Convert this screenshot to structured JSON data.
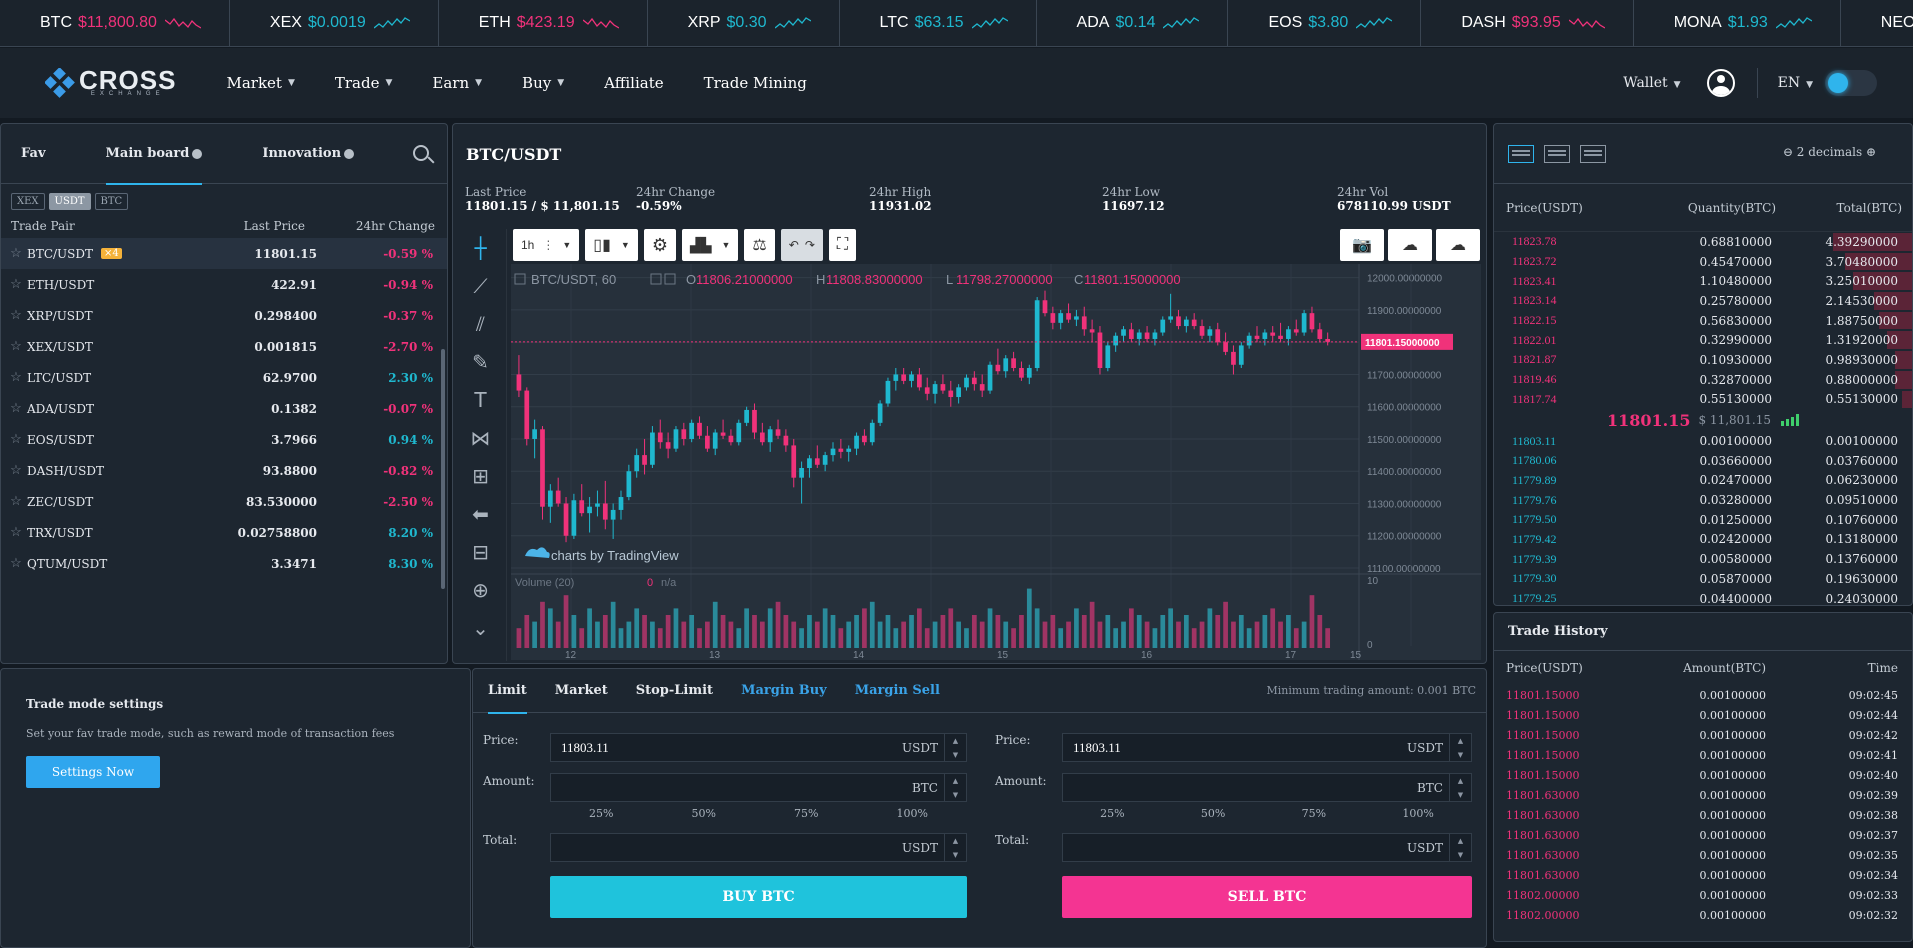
{
  "ticker": [
    {
      "sym": "BTC",
      "price": "$11,800.80",
      "dir": "down"
    },
    {
      "sym": "XEX",
      "price": "$0.0019",
      "dir": "up"
    },
    {
      "sym": "ETH",
      "price": "$423.19",
      "dir": "down"
    },
    {
      "sym": "XRP",
      "price": "$0.30",
      "dir": "up"
    },
    {
      "sym": "LTC",
      "price": "$63.15",
      "dir": "up"
    },
    {
      "sym": "ADA",
      "price": "$0.14",
      "dir": "up"
    },
    {
      "sym": "EOS",
      "price": "$3.80",
      "dir": "up"
    },
    {
      "sym": "DASH",
      "price": "$93.95",
      "dir": "down"
    },
    {
      "sym": "MONA",
      "price": "$1.93",
      "dir": "up"
    },
    {
      "sym": "NEO",
      "price": "",
      "dir": "up"
    }
  ],
  "logo": {
    "word": "CROSS",
    "sub": "EXCHANGE"
  },
  "nav": {
    "items": [
      {
        "label": "Market",
        "caret": true
      },
      {
        "label": "Trade",
        "caret": true
      },
      {
        "label": "Earn",
        "caret": true
      },
      {
        "label": "Buy",
        "caret": true
      },
      {
        "label": "Affiliate",
        "caret": false
      },
      {
        "label": "Trade Mining",
        "caret": false
      }
    ],
    "wallet": "Wallet",
    "lang": "EN"
  },
  "market": {
    "tabs": [
      "Fav",
      "Main board",
      "Innovation"
    ],
    "chips": [
      "XEX",
      "USDT",
      "BTC"
    ],
    "headers": [
      "Trade Pair",
      "Last Price",
      "24hr Change"
    ],
    "rows": [
      {
        "pair": "BTC/USDT",
        "badge": "×4",
        "price": "11801.15",
        "change": "-0.59 %",
        "dir": "down"
      },
      {
        "pair": "ETH/USDT",
        "badge": "",
        "price": "422.91",
        "change": "-0.94 %",
        "dir": "down"
      },
      {
        "pair": "XRP/USDT",
        "badge": "",
        "price": "0.298400",
        "change": "-0.37 %",
        "dir": "down"
      },
      {
        "pair": "XEX/USDT",
        "badge": "",
        "price": "0.001815",
        "change": "-2.70 %",
        "dir": "down"
      },
      {
        "pair": "LTC/USDT",
        "badge": "",
        "price": "62.9700",
        "change": "2.30 %",
        "dir": "up"
      },
      {
        "pair": "ADA/USDT",
        "badge": "",
        "price": "0.1382",
        "change": "-0.07 %",
        "dir": "down"
      },
      {
        "pair": "EOS/USDT",
        "badge": "",
        "price": "3.7966",
        "change": "0.94 %",
        "dir": "up"
      },
      {
        "pair": "DASH/USDT",
        "badge": "",
        "price": "93.8800",
        "change": "-0.82 %",
        "dir": "down"
      },
      {
        "pair": "ZEC/USDT",
        "badge": "",
        "price": "83.530000",
        "change": "-2.50 %",
        "dir": "down"
      },
      {
        "pair": "TRX/USDT",
        "badge": "",
        "price": "0.02758800",
        "change": "8.20 %",
        "dir": "up"
      },
      {
        "pair": "QTUM/USDT",
        "badge": "",
        "price": "3.3471",
        "change": "8.30 %",
        "dir": "up"
      }
    ]
  },
  "chart": {
    "title": "BTC/USDT",
    "stats": [
      {
        "k": "Last Price",
        "v": "11801.15 / $ 11,801.15"
      },
      {
        "k": "24hr Change",
        "v": "-0.59%"
      },
      {
        "k": "24hr High",
        "v": "11931.02"
      },
      {
        "k": "24hr Low",
        "v": "11697.12"
      },
      {
        "k": "24hr Vol",
        "v": "678110.99 USDT"
      }
    ],
    "interval": "1h",
    "legend": "BTC/USDT, 60",
    "o": "11806.21000000",
    "h": "11808.83000000",
    "l": "11798.27000000",
    "c": "11801.15000000",
    "last_label": "11801.15000000",
    "y_ticks": [
      "12000.00000000",
      "11900.00000000",
      "11800.00000000",
      "11700.00000000",
      "11600.00000000",
      "11500.00000000",
      "11400.00000000",
      "11300.00000000",
      "11200.00000000",
      "11100.00000000"
    ],
    "x_ticks": [
      "12",
      "13",
      "14",
      "15",
      "16",
      "17",
      "15"
    ],
    "volume_label": "Volume (20)",
    "volume_val": "0",
    "volume_na": "n/a",
    "vol_ticks": [
      "10",
      "0"
    ],
    "watermark": "charts by TradingView"
  },
  "chart_data": {
    "type": "candlestick",
    "title": "BTC/USDT, 60",
    "ylim": [
      11100,
      12030
    ],
    "candles": [
      [
        11700,
        11760,
        11630,
        11650
      ],
      [
        11650,
        11660,
        11480,
        11500
      ],
      [
        11500,
        11560,
        11440,
        11530
      ],
      [
        11530,
        11540,
        11250,
        11290
      ],
      [
        11290,
        11360,
        11240,
        11340
      ],
      [
        11340,
        11380,
        11290,
        11300
      ],
      [
        11300,
        11320,
        11180,
        11200
      ],
      [
        11200,
        11330,
        11190,
        11310
      ],
      [
        11310,
        11360,
        11260,
        11270
      ],
      [
        11270,
        11320,
        11210,
        11290
      ],
      [
        11290,
        11340,
        11260,
        11300
      ],
      [
        11300,
        11370,
        11220,
        11250
      ],
      [
        11250,
        11300,
        11190,
        11280
      ],
      [
        11280,
        11340,
        11250,
        11320
      ],
      [
        11320,
        11420,
        11310,
        11400
      ],
      [
        11400,
        11470,
        11380,
        11450
      ],
      [
        11450,
        11500,
        11390,
        11420
      ],
      [
        11420,
        11540,
        11410,
        11520
      ],
      [
        11520,
        11560,
        11470,
        11490
      ],
      [
        11490,
        11520,
        11440,
        11470
      ],
      [
        11470,
        11540,
        11460,
        11530
      ],
      [
        11530,
        11550,
        11480,
        11500
      ],
      [
        11500,
        11560,
        11490,
        11550
      ],
      [
        11550,
        11570,
        11500,
        11510
      ],
      [
        11510,
        11540,
        11460,
        11470
      ],
      [
        11470,
        11530,
        11450,
        11520
      ],
      [
        11520,
        11560,
        11500,
        11510
      ],
      [
        11510,
        11530,
        11480,
        11490
      ],
      [
        11490,
        11560,
        11480,
        11550
      ],
      [
        11550,
        11600,
        11540,
        11590
      ],
      [
        11590,
        11610,
        11500,
        11520
      ],
      [
        11520,
        11550,
        11480,
        11490
      ],
      [
        11490,
        11540,
        11460,
        11530
      ],
      [
        11530,
        11560,
        11500,
        11510
      ],
      [
        11510,
        11530,
        11460,
        11480
      ],
      [
        11480,
        11500,
        11350,
        11380
      ],
      [
        11380,
        11430,
        11300,
        11410
      ],
      [
        11410,
        11450,
        11380,
        11440
      ],
      [
        11440,
        11480,
        11410,
        11420
      ],
      [
        11420,
        11460,
        11400,
        11450
      ],
      [
        11450,
        11490,
        11430,
        11470
      ],
      [
        11470,
        11500,
        11440,
        11460
      ],
      [
        11460,
        11480,
        11430,
        11470
      ],
      [
        11470,
        11520,
        11450,
        11510
      ],
      [
        11510,
        11530,
        11480,
        11490
      ],
      [
        11490,
        11560,
        11480,
        11550
      ],
      [
        11550,
        11620,
        11540,
        11610
      ],
      [
        11610,
        11690,
        11600,
        11680
      ],
      [
        11680,
        11720,
        11650,
        11700
      ],
      [
        11700,
        11720,
        11670,
        11680
      ],
      [
        11680,
        11710,
        11660,
        11700
      ],
      [
        11700,
        11720,
        11650,
        11660
      ],
      [
        11660,
        11690,
        11620,
        11640
      ],
      [
        11640,
        11680,
        11610,
        11670
      ],
      [
        11670,
        11700,
        11640,
        11650
      ],
      [
        11650,
        11680,
        11600,
        11630
      ],
      [
        11630,
        11670,
        11610,
        11660
      ],
      [
        11660,
        11700,
        11650,
        11690
      ],
      [
        11690,
        11710,
        11650,
        11670
      ],
      [
        11670,
        11700,
        11630,
        11650
      ],
      [
        11650,
        11740,
        11640,
        11730
      ],
      [
        11730,
        11780,
        11700,
        11710
      ],
      [
        11710,
        11760,
        11690,
        11750
      ],
      [
        11750,
        11770,
        11710,
        11720
      ],
      [
        11720,
        11740,
        11680,
        11690
      ],
      [
        11690,
        11730,
        11670,
        11720
      ],
      [
        11720,
        11940,
        11710,
        11930
      ],
      [
        11930,
        11960,
        11880,
        11890
      ],
      [
        11890,
        11910,
        11840,
        11860
      ],
      [
        11860,
        11900,
        11840,
        11890
      ],
      [
        11890,
        11920,
        11860,
        11870
      ],
      [
        11870,
        11900,
        11850,
        11880
      ],
      [
        11880,
        11910,
        11820,
        11840
      ],
      [
        11840,
        11870,
        11800,
        11830
      ],
      [
        11830,
        11850,
        11700,
        11720
      ],
      [
        11720,
        11800,
        11710,
        11790
      ],
      [
        11790,
        11830,
        11770,
        11820
      ],
      [
        11820,
        11850,
        11800,
        11840
      ],
      [
        11840,
        11860,
        11800,
        11810
      ],
      [
        11810,
        11840,
        11790,
        11830
      ],
      [
        11830,
        11850,
        11800,
        11810
      ],
      [
        11810,
        11840,
        11790,
        11830
      ],
      [
        11830,
        11880,
        11820,
        11870
      ],
      [
        11870,
        11950,
        11860,
        11880
      ],
      [
        11880,
        11900,
        11840,
        11850
      ],
      [
        11850,
        11880,
        11830,
        11870
      ],
      [
        11870,
        11890,
        11840,
        11850
      ],
      [
        11850,
        11870,
        11810,
        11820
      ],
      [
        11820,
        11850,
        11800,
        11840
      ],
      [
        11840,
        11860,
        11790,
        11800
      ],
      [
        11800,
        11830,
        11760,
        11770
      ],
      [
        11770,
        11790,
        11700,
        11730
      ],
      [
        11730,
        11800,
        11720,
        11790
      ],
      [
        11790,
        11830,
        11780,
        11820
      ],
      [
        11820,
        11850,
        11800,
        11810
      ],
      [
        11810,
        11840,
        11790,
        11830
      ],
      [
        11830,
        11850,
        11800,
        11820
      ],
      [
        11820,
        11860,
        11800,
        11810
      ],
      [
        11810,
        11850,
        11790,
        11840
      ],
      [
        11840,
        11870,
        11820,
        11830
      ],
      [
        11830,
        11900,
        11820,
        11890
      ],
      [
        11890,
        11910,
        11830,
        11840
      ],
      [
        11840,
        11860,
        11800,
        11810
      ],
      [
        11810,
        11830,
        11790,
        11801
      ]
    ],
    "volume": [
      3,
      5,
      4,
      7,
      6,
      4,
      8,
      5,
      3,
      6,
      4,
      5,
      7,
      3,
      4,
      6,
      5,
      4,
      3,
      5,
      6,
      4,
      5,
      3,
      4,
      7,
      5,
      4,
      3,
      6,
      5,
      4,
      6,
      7,
      5,
      4,
      3,
      5,
      4,
      6,
      5,
      3,
      4,
      5,
      6,
      7,
      4,
      5,
      3,
      4,
      5,
      6,
      3,
      4,
      5,
      6,
      4,
      3,
      5,
      4,
      6,
      5,
      4,
      3,
      5,
      9,
      6,
      4,
      5,
      3,
      4,
      6,
      5,
      7,
      4,
      5,
      3,
      4,
      6,
      5,
      4,
      3,
      5,
      6,
      4,
      5,
      3,
      4,
      6,
      5,
      7,
      4,
      5,
      3,
      4,
      5,
      6,
      4,
      5,
      3,
      4,
      8,
      5,
      3
    ]
  },
  "orderbook": {
    "decimals": "2 decimals",
    "headers": [
      "Price(USDT)",
      "Quantity(BTC)",
      "Total(BTC)"
    ],
    "asks": [
      {
        "p": "11823.78",
        "q": "0.68810000",
        "t": "4.39290000",
        "d": 0.19
      },
      {
        "p": "11823.72",
        "q": "0.45470000",
        "t": "3.70480000",
        "d": 0.16
      },
      {
        "p": "11823.41",
        "q": "1.10480000",
        "t": "3.25010000",
        "d": 0.14
      },
      {
        "p": "11823.14",
        "q": "0.25780000",
        "t": "2.14530000",
        "d": 0.09
      },
      {
        "p": "11822.15",
        "q": "0.56830000",
        "t": "1.88750000",
        "d": 0.08
      },
      {
        "p": "11822.01",
        "q": "0.32990000",
        "t": "1.31920000",
        "d": 0.06
      },
      {
        "p": "11821.87",
        "q": "0.10930000",
        "t": "0.98930000",
        "d": 0.04
      },
      {
        "p": "11819.46",
        "q": "0.32870000",
        "t": "0.88000000",
        "d": 0.04
      },
      {
        "p": "11817.74",
        "q": "0.55130000",
        "t": "0.55130000",
        "d": 0.025
      }
    ],
    "mid_price": "11801.15",
    "mid_usd": "$ 11,801.15",
    "bids": [
      {
        "p": "11803.11",
        "q": "0.00100000",
        "t": "0.00100000"
      },
      {
        "p": "11780.06",
        "q": "0.03660000",
        "t": "0.03760000"
      },
      {
        "p": "11779.89",
        "q": "0.02470000",
        "t": "0.06230000"
      },
      {
        "p": "11779.76",
        "q": "0.03280000",
        "t": "0.09510000"
      },
      {
        "p": "11779.50",
        "q": "0.01250000",
        "t": "0.10760000"
      },
      {
        "p": "11779.42",
        "q": "0.02420000",
        "t": "0.13180000"
      },
      {
        "p": "11779.39",
        "q": "0.00580000",
        "t": "0.13760000"
      },
      {
        "p": "11779.30",
        "q": "0.05870000",
        "t": "0.19630000"
      },
      {
        "p": "11779.25",
        "q": "0.04400000",
        "t": "0.24030000"
      }
    ]
  },
  "history": {
    "title": "Trade History",
    "headers": [
      "Price(USDT)",
      "Amount(BTC)",
      "Time"
    ],
    "rows": [
      {
        "p": "11801.15000",
        "a": "0.00100000",
        "t": "09:02:45"
      },
      {
        "p": "11801.15000",
        "a": "0.00100000",
        "t": "09:02:44"
      },
      {
        "p": "11801.15000",
        "a": "0.00100000",
        "t": "09:02:42"
      },
      {
        "p": "11801.15000",
        "a": "0.00100000",
        "t": "09:02:41"
      },
      {
        "p": "11801.15000",
        "a": "0.00100000",
        "t": "09:02:40"
      },
      {
        "p": "11801.63000",
        "a": "0.00100000",
        "t": "09:02:39"
      },
      {
        "p": "11801.63000",
        "a": "0.00100000",
        "t": "09:02:38"
      },
      {
        "p": "11801.63000",
        "a": "0.00100000",
        "t": "09:02:37"
      },
      {
        "p": "11801.63000",
        "a": "0.00100000",
        "t": "09:02:35"
      },
      {
        "p": "11801.63000",
        "a": "0.00100000",
        "t": "09:02:34"
      },
      {
        "p": "11802.00000",
        "a": "0.00100000",
        "t": "09:02:33"
      },
      {
        "p": "11802.00000",
        "a": "0.00100000",
        "t": "09:02:32"
      }
    ]
  },
  "trademode": {
    "title": "Trade mode settings",
    "desc": "Set your fav trade mode, such as reward mode of transaction fees",
    "button": "Settings Now"
  },
  "orderform": {
    "tabs": [
      "Limit",
      "Market",
      "Stop-Limit",
      "Margin Buy",
      "Margin Sell"
    ],
    "min": "Minimum trading amount: 0.001 BTC",
    "price_label": "Price:",
    "amount_label": "Amount:",
    "total_label": "Total:",
    "buy": {
      "price": "11803.11",
      "price_unit": "USDT",
      "amount": "",
      "amount_unit": "BTC",
      "total": "",
      "total_unit": "USDT",
      "button": "BUY BTC"
    },
    "sell": {
      "price": "11803.11",
      "price_unit": "USDT",
      "amount": "",
      "amount_unit": "BTC",
      "total": "",
      "total_unit": "USDT",
      "button": "SELL BTC"
    },
    "pcts": [
      "25%",
      "50%",
      "75%",
      "100%"
    ]
  },
  "colors": {
    "up": "#1fb8cf",
    "down": "#f0327a",
    "accent": "#2fb4ec",
    "buy": "#1fc3dc",
    "sell": "#f43492"
  }
}
